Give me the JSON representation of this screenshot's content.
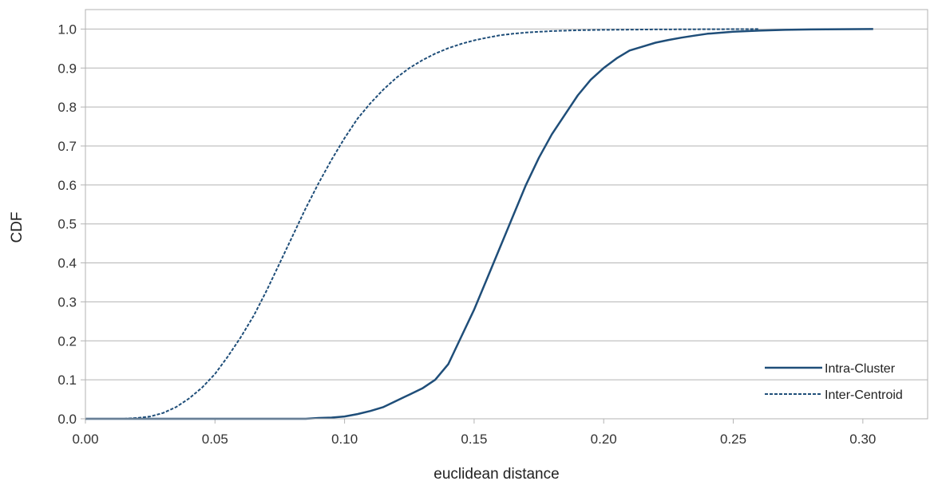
{
  "chart_data": {
    "type": "line",
    "xlabel": "euclidean distance",
    "ylabel": "CDF",
    "xlim": [
      0,
      0.325
    ],
    "ylim": [
      0,
      1.05
    ],
    "x_ticks": [
      "0.00",
      "0.05",
      "0.10",
      "0.15",
      "0.20",
      "0.25",
      "0.30"
    ],
    "y_ticks": [
      "0.0",
      "0.1",
      "0.2",
      "0.3",
      "0.4",
      "0.5",
      "0.6",
      "0.7",
      "0.8",
      "0.9",
      "1.0"
    ],
    "grid": "horizontal",
    "legend_position": "bottom-right",
    "series": [
      {
        "name": "Intra-Cluster",
        "style": "solid",
        "color": "#1f4e79",
        "points": [
          [
            0.0,
            0.0
          ],
          [
            0.085,
            0.0
          ],
          [
            0.09,
            0.002
          ],
          [
            0.095,
            0.003
          ],
          [
            0.1,
            0.006
          ],
          [
            0.105,
            0.012
          ],
          [
            0.11,
            0.02
          ],
          [
            0.115,
            0.03
          ],
          [
            0.12,
            0.046
          ],
          [
            0.125,
            0.062
          ],
          [
            0.13,
            0.078
          ],
          [
            0.135,
            0.1
          ],
          [
            0.14,
            0.14
          ],
          [
            0.145,
            0.21
          ],
          [
            0.15,
            0.28
          ],
          [
            0.155,
            0.36
          ],
          [
            0.16,
            0.44
          ],
          [
            0.165,
            0.52
          ],
          [
            0.17,
            0.6
          ],
          [
            0.175,
            0.67
          ],
          [
            0.18,
            0.73
          ],
          [
            0.185,
            0.78
          ],
          [
            0.19,
            0.83
          ],
          [
            0.195,
            0.87
          ],
          [
            0.2,
            0.9
          ],
          [
            0.205,
            0.925
          ],
          [
            0.21,
            0.945
          ],
          [
            0.215,
            0.955
          ],
          [
            0.22,
            0.965
          ],
          [
            0.225,
            0.972
          ],
          [
            0.23,
            0.978
          ],
          [
            0.235,
            0.983
          ],
          [
            0.24,
            0.988
          ],
          [
            0.25,
            0.993
          ],
          [
            0.26,
            0.996
          ],
          [
            0.27,
            0.998
          ],
          [
            0.28,
            0.999
          ],
          [
            0.304,
            1.0
          ]
        ]
      },
      {
        "name": "Inter-Centroid",
        "style": "dashed",
        "color": "#1f4e79",
        "points": [
          [
            0.0,
            0.0
          ],
          [
            0.015,
            0.0
          ],
          [
            0.02,
            0.002
          ],
          [
            0.025,
            0.006
          ],
          [
            0.03,
            0.015
          ],
          [
            0.035,
            0.03
          ],
          [
            0.04,
            0.052
          ],
          [
            0.045,
            0.08
          ],
          [
            0.05,
            0.115
          ],
          [
            0.055,
            0.16
          ],
          [
            0.06,
            0.21
          ],
          [
            0.065,
            0.265
          ],
          [
            0.07,
            0.33
          ],
          [
            0.075,
            0.4
          ],
          [
            0.08,
            0.47
          ],
          [
            0.085,
            0.54
          ],
          [
            0.09,
            0.605
          ],
          [
            0.095,
            0.665
          ],
          [
            0.1,
            0.72
          ],
          [
            0.105,
            0.77
          ],
          [
            0.11,
            0.81
          ],
          [
            0.115,
            0.845
          ],
          [
            0.12,
            0.875
          ],
          [
            0.125,
            0.9
          ],
          [
            0.13,
            0.92
          ],
          [
            0.135,
            0.937
          ],
          [
            0.14,
            0.951
          ],
          [
            0.145,
            0.962
          ],
          [
            0.15,
            0.971
          ],
          [
            0.155,
            0.978
          ],
          [
            0.16,
            0.984
          ],
          [
            0.165,
            0.988
          ],
          [
            0.17,
            0.991
          ],
          [
            0.18,
            0.995
          ],
          [
            0.19,
            0.997
          ],
          [
            0.2,
            0.998
          ],
          [
            0.22,
            0.999
          ],
          [
            0.26,
            1.0
          ]
        ]
      }
    ]
  }
}
